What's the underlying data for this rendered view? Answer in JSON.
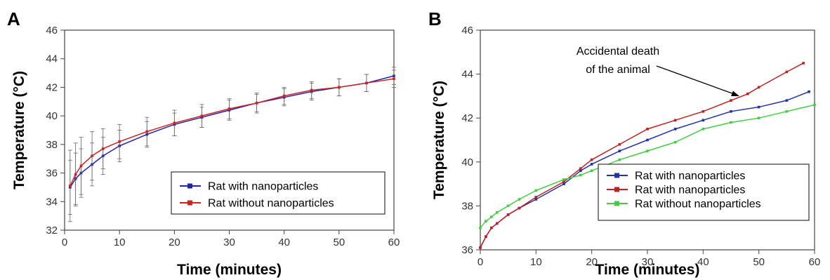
{
  "chart_data": [
    {
      "panel": "A",
      "type": "line",
      "xlabel": "Time (minutes)",
      "ylabel": "Temperature (°C)",
      "xlim": [
        0,
        60
      ],
      "ylim": [
        32,
        46
      ],
      "xticks": [
        "0",
        "10",
        "20",
        "30",
        "40",
        "50",
        "60"
      ],
      "yticks": [
        "32",
        "34",
        "36",
        "38",
        "40",
        "42",
        "44",
        "46"
      ],
      "grid": false,
      "legend_position": "bottom-right",
      "error_bars": true,
      "series": [
        {
          "name": "Rat with nanoparticles",
          "color": "#2222aa",
          "x": [
            1,
            2,
            3,
            5,
            7,
            10,
            15,
            20,
            25,
            30,
            35,
            40,
            45,
            50,
            55,
            60
          ],
          "y": [
            35.0,
            35.6,
            36.0,
            36.6,
            37.2,
            37.9,
            38.7,
            39.4,
            39.9,
            40.4,
            40.9,
            41.3,
            41.7,
            42.0,
            42.3,
            42.8
          ],
          "err": [
            1.9,
            1.8,
            1.7,
            1.5,
            1.3,
            1.1,
            0.9,
            0.8,
            0.7,
            0.7,
            0.6,
            0.6,
            0.6,
            0.6,
            0.6,
            0.6
          ]
        },
        {
          "name": "Rat without nanoparticles",
          "color": "#cc2222",
          "x": [
            1,
            2,
            3,
            5,
            7,
            10,
            15,
            20,
            25,
            30,
            35,
            40,
            45,
            50,
            55,
            60
          ],
          "y": [
            35.1,
            35.9,
            36.5,
            37.2,
            37.7,
            38.2,
            38.9,
            39.5,
            40.0,
            40.5,
            40.9,
            41.4,
            41.8,
            42.0,
            42.3,
            42.6
          ],
          "err": [
            2.5,
            2.2,
            2.0,
            1.7,
            1.4,
            1.2,
            1.0,
            0.9,
            0.8,
            0.7,
            0.7,
            0.6,
            0.6,
            0.6,
            0.6,
            0.6
          ]
        }
      ]
    },
    {
      "panel": "B",
      "type": "line",
      "xlabel": "Time (minutes)",
      "ylabel": "Temperature (°C)",
      "xlim": [
        0,
        60
      ],
      "ylim": [
        36,
        46
      ],
      "xticks": [
        "0",
        "10",
        "20",
        "30",
        "40",
        "50",
        "60"
      ],
      "yticks": [
        "36",
        "38",
        "40",
        "42",
        "44",
        "46"
      ],
      "grid": false,
      "legend_position": "bottom-right",
      "annotation": {
        "lines": [
          "Accidental death",
          "of the animal"
        ],
        "target_x": 47,
        "target_y": 42.9
      },
      "series": [
        {
          "name": "Rat with nanoparticles",
          "color": "#2233aa",
          "x": [
            0,
            1,
            2,
            3,
            5,
            7,
            10,
            15,
            18,
            20,
            25,
            30,
            35,
            40,
            45,
            50,
            55,
            59
          ],
          "y": [
            36.1,
            36.6,
            37.0,
            37.2,
            37.6,
            37.9,
            38.3,
            39.0,
            39.6,
            39.9,
            40.5,
            41.0,
            41.5,
            41.9,
            42.3,
            42.5,
            42.8,
            43.2
          ]
        },
        {
          "name": "Rat with nanoparticles",
          "color": "#bb2222",
          "x": [
            0,
            1,
            2,
            3,
            5,
            7,
            10,
            15,
            18,
            20,
            25,
            30,
            35,
            40,
            45,
            48,
            50,
            55,
            58
          ],
          "y": [
            36.1,
            36.6,
            37.0,
            37.2,
            37.6,
            37.9,
            38.4,
            39.1,
            39.7,
            40.1,
            40.8,
            41.5,
            41.9,
            42.3,
            42.8,
            43.1,
            43.4,
            44.1,
            44.5
          ]
        },
        {
          "name": "Rat without nanoparticles",
          "color": "#44cc44",
          "x": [
            0,
            1,
            2,
            3,
            5,
            7,
            10,
            15,
            18,
            20,
            25,
            30,
            35,
            40,
            45,
            50,
            55,
            60
          ],
          "y": [
            37.0,
            37.3,
            37.5,
            37.7,
            38.0,
            38.3,
            38.7,
            39.2,
            39.4,
            39.6,
            40.1,
            40.5,
            40.9,
            41.5,
            41.8,
            42.0,
            42.3,
            42.6
          ]
        }
      ]
    }
  ]
}
